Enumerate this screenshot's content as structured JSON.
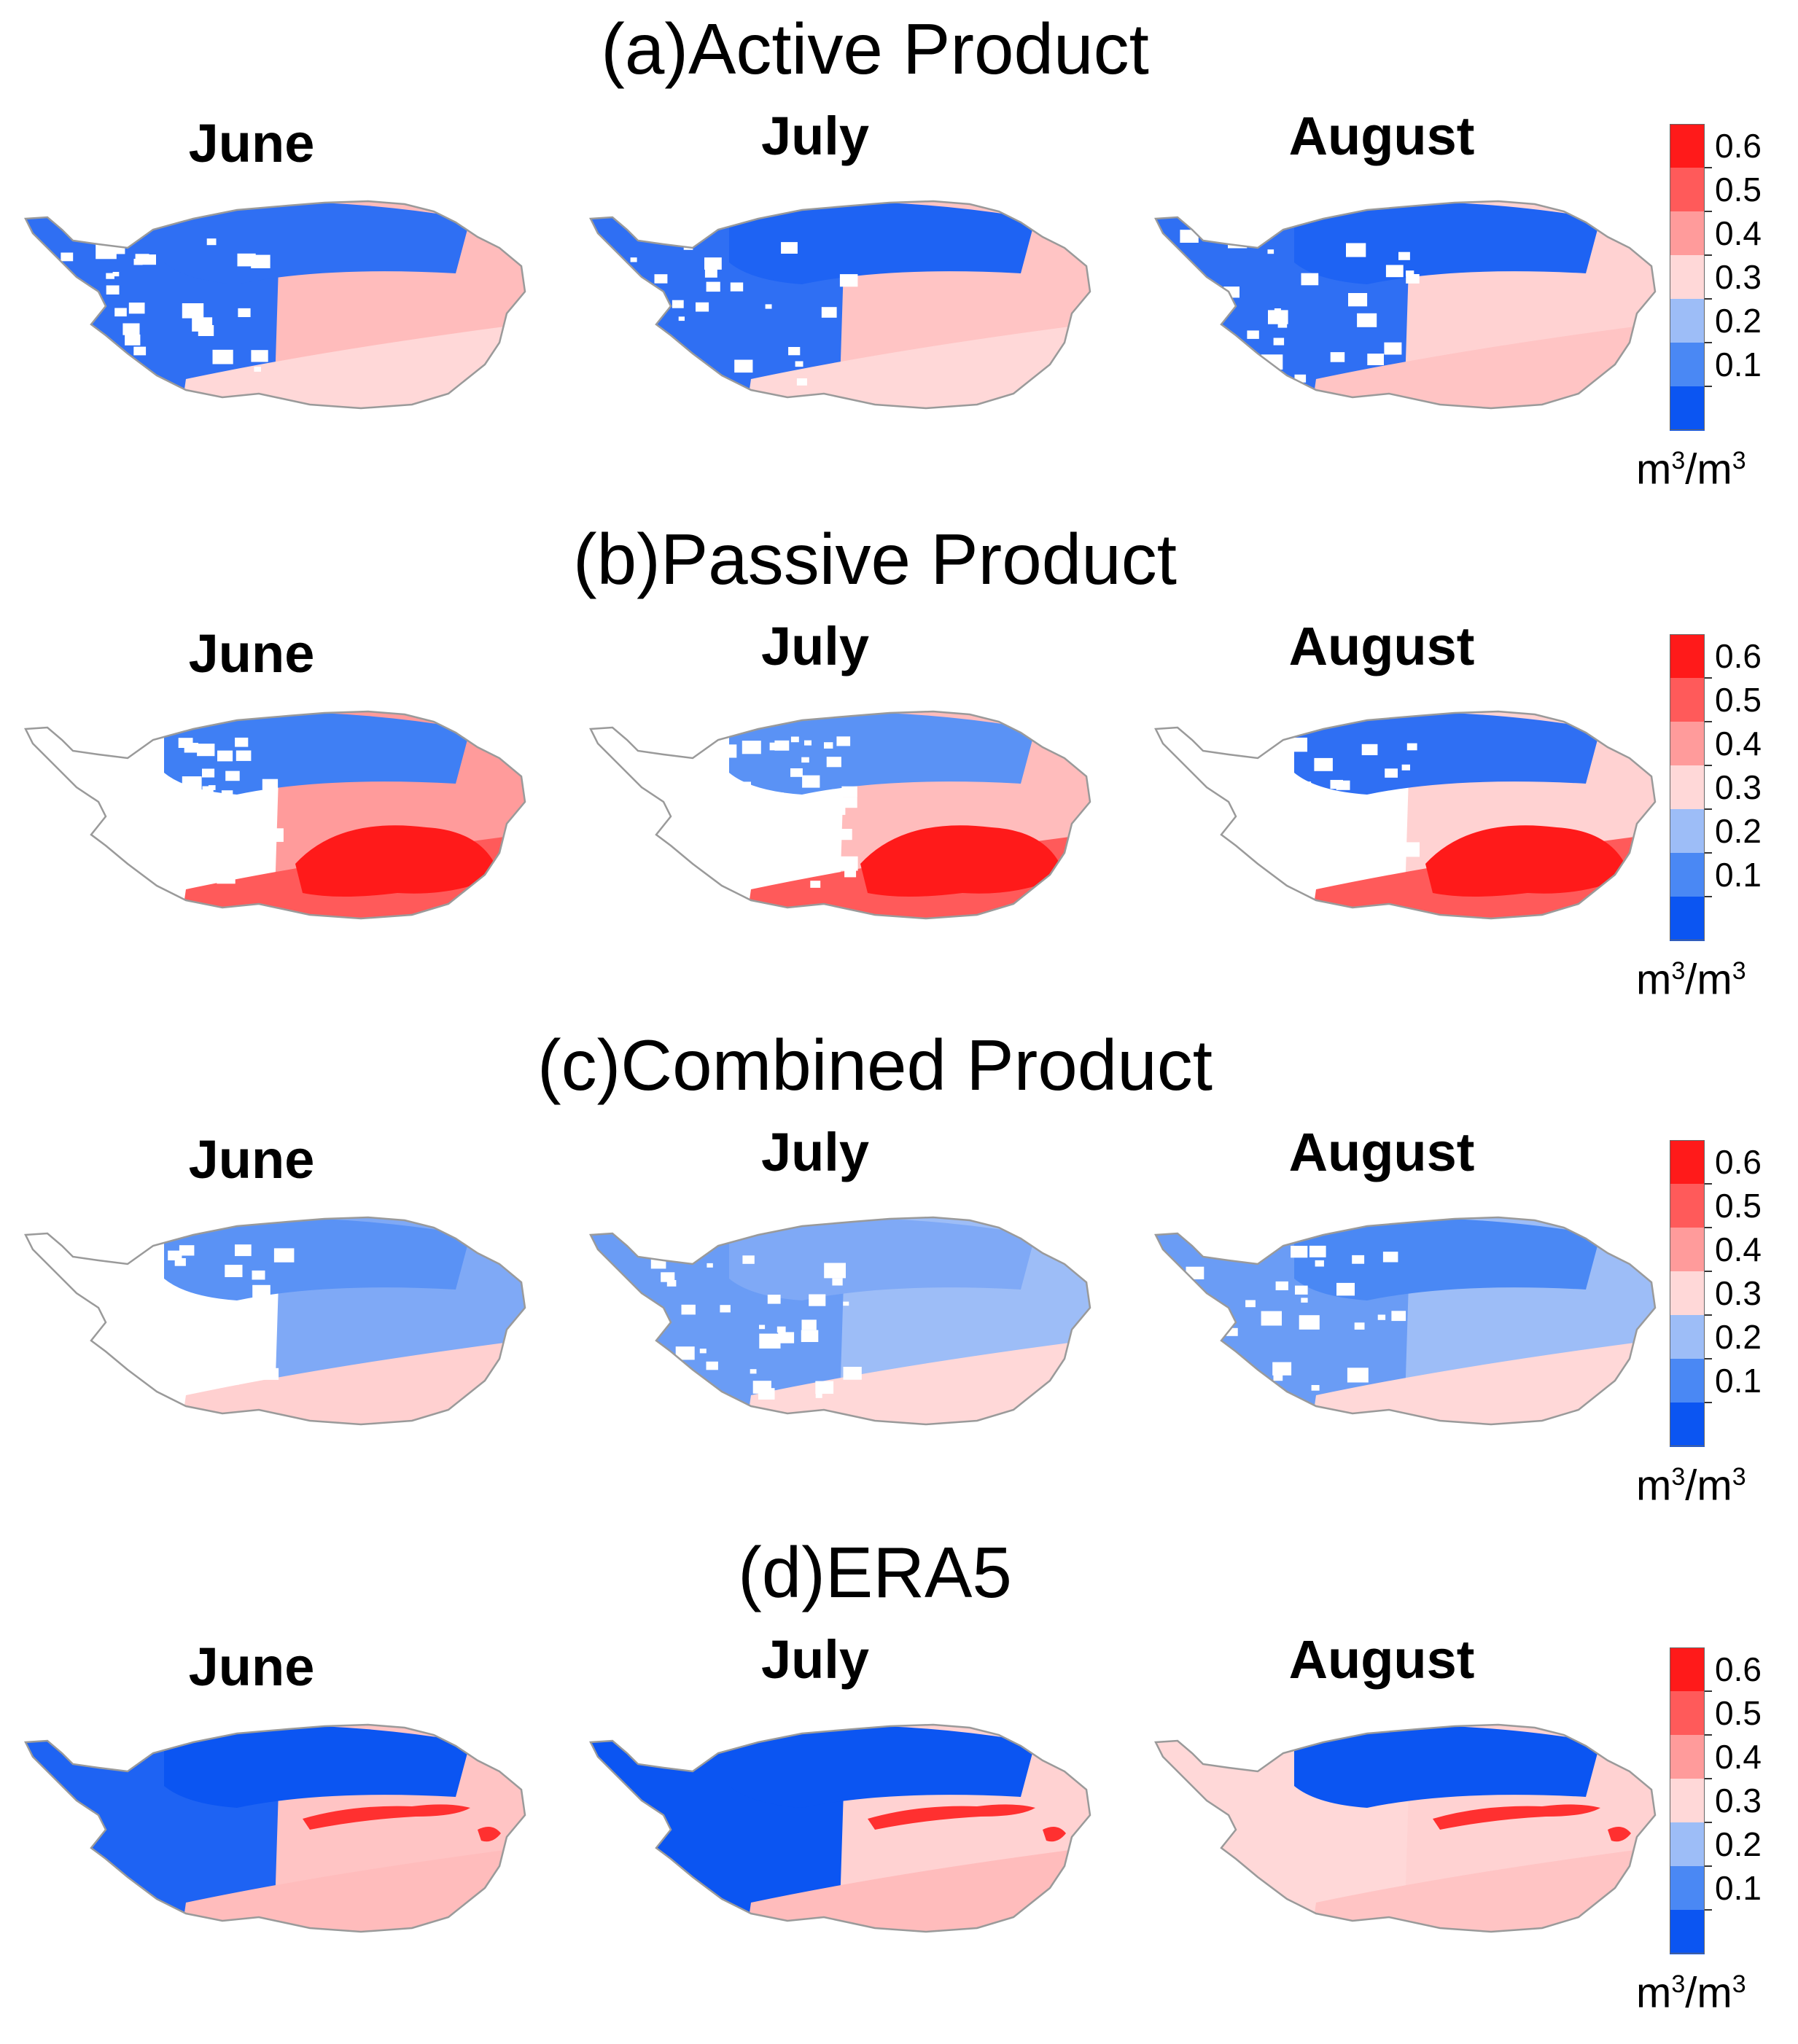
{
  "months": [
    "June",
    "July",
    "August"
  ],
  "colorbar": {
    "labels": [
      "0.6",
      "0.5",
      "0.4",
      "0.3",
      "0.2",
      "0.1"
    ],
    "colors": [
      "#ff1a1a",
      "#ff5a5a",
      "#ff9b9b",
      "#ffd8d8",
      "#9dbdf7",
      "#4a88f4",
      "#0b55f2"
    ],
    "unit_m": "m",
    "unit_exp": "3",
    "unit_slash": "/"
  },
  "colors": {
    "land": "#ffffff",
    "outline": "#9a9a9a",
    "mask": "#ffffff"
  },
  "panels": [
    {
      "id": "a",
      "title": "(a)Active Product",
      "maps": [
        {
          "month": "June",
          "west": "#2f6ff3",
          "east": "#ffbcbc",
          "north": "#2f6ff3",
          "south": "#ffd8d8",
          "hot": null,
          "gaps": 0.35
        },
        {
          "month": "July",
          "west": "#2f6ff3",
          "east": "#ffc4c4",
          "north": "#1e63f3",
          "south": "#ffd8d8",
          "hot": null,
          "gaps": 0.3
        },
        {
          "month": "August",
          "west": "#2f6ff3",
          "east": "#ffd2d2",
          "north": "#1e63f3",
          "south": "#ffc4c4",
          "hot": null,
          "gaps": 0.25
        }
      ]
    },
    {
      "id": "b",
      "title": "(b)Passive Product",
      "maps": [
        {
          "month": "June",
          "west": "#ffffff",
          "east": "#ff9b9b",
          "north": "#3f7ff4",
          "south": "#ff5a5a",
          "hot": "#ff1a1a",
          "gaps": 0.6
        },
        {
          "month": "July",
          "west": "#ffffff",
          "east": "#ffbcbc",
          "north": "#5a92f5",
          "south": "#ff5a5a",
          "hot": "#ff1a1a",
          "gaps": 0.55
        },
        {
          "month": "August",
          "west": "#ffffff",
          "east": "#ffd2d2",
          "north": "#2f6ff3",
          "south": "#ff5a5a",
          "hot": "#ff1a1a",
          "gaps": 0.5
        }
      ]
    },
    {
      "id": "c",
      "title": "(c)Combined Product",
      "maps": [
        {
          "month": "June",
          "west": "#ffffff",
          "east": "#7fa9f6",
          "north": "#5a92f5",
          "south": "#ffd0d0",
          "hot": null,
          "gaps": 0.5
        },
        {
          "month": "July",
          "west": "#6a9cf5",
          "east": "#9dbdf7",
          "north": "#7fa9f6",
          "south": "#ffd8d8",
          "hot": null,
          "gaps": 0.3
        },
        {
          "month": "August",
          "west": "#6a9cf5",
          "east": "#9dbdf7",
          "north": "#4a88f4",
          "south": "#ffd8d8",
          "hot": null,
          "gaps": 0.3
        }
      ]
    },
    {
      "id": "d",
      "title": "(d)ERA5",
      "maps": [
        {
          "month": "June",
          "west": "#1e63f3",
          "east": "#ffc4c4",
          "north": "#0b55f2",
          "south": "#ffbcbc",
          "hot": "#ff3030",
          "gaps": 0
        },
        {
          "month": "July",
          "west": "#0b55f2",
          "east": "#ffd2d2",
          "north": "#0b55f2",
          "south": "#ffbcbc",
          "hot": "#ff3030",
          "gaps": 0
        },
        {
          "month": "August",
          "west": "#ffd8d8",
          "east": "#ffd2d2",
          "north": "#0b55f2",
          "south": "#ffc4c4",
          "hot": "#ff3030",
          "gaps": 0
        }
      ]
    }
  ]
}
